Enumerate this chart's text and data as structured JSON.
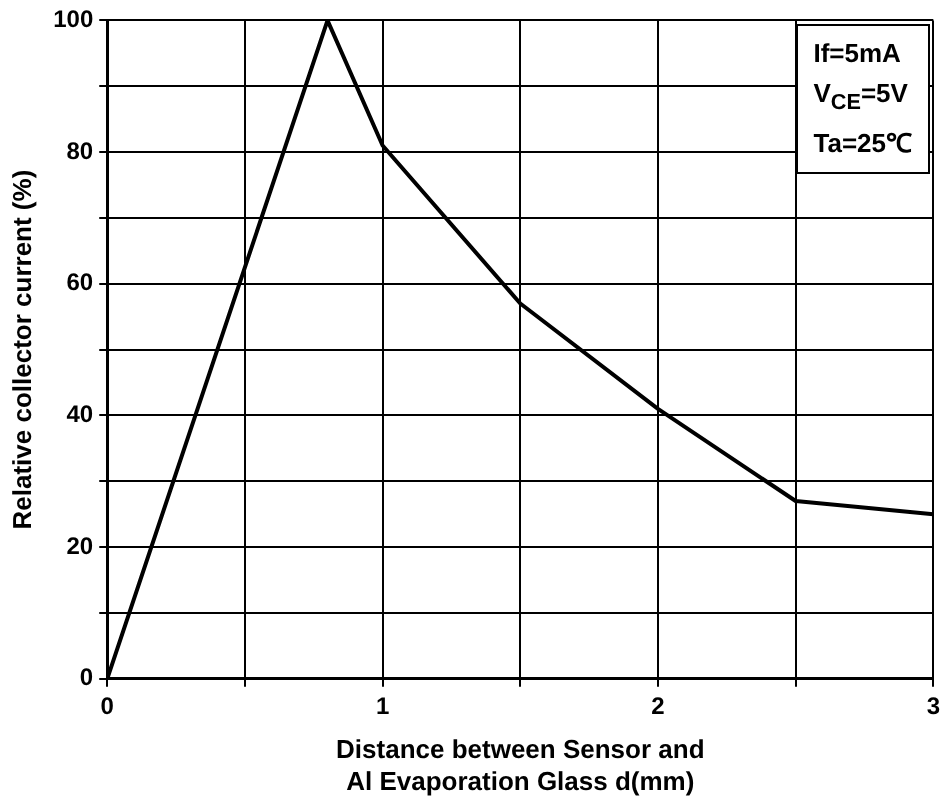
{
  "chart_data": {
    "type": "line",
    "xlabel": "Distance between Sensor and\nAl Evaporation Glass d(mm)",
    "ylabel": "Relative collector current (%)",
    "x": [
      0,
      0.8,
      1,
      1.5,
      2,
      2.5,
      3
    ],
    "series": [
      {
        "color": "#000000",
        "values": [
          0,
          100,
          81,
          57,
          41,
          27,
          25
        ]
      }
    ],
    "xlim": [
      0,
      3
    ],
    "xticks": [
      0,
      {
        "value": 0.5,
        "label": null
      },
      1,
      {
        "value": 1.5,
        "label": null
      },
      2,
      {
        "value": 2.5,
        "label": null
      },
      3
    ],
    "ylim": [
      0,
      100
    ],
    "yticks": [
      0,
      {
        "value": 10,
        "label": null
      },
      20,
      {
        "value": 30,
        "label": null
      },
      40,
      {
        "value": 50,
        "label": null
      },
      60,
      {
        "value": 70,
        "label": null
      },
      80,
      {
        "value": 90,
        "label": null
      },
      100
    ],
    "grid": true,
    "marker": "none",
    "line_style": "solid",
    "legend": false,
    "annotations": [
      "If=5mA",
      "V$_{CE}$=5V",
      "Ta=25℃"
    ]
  }
}
